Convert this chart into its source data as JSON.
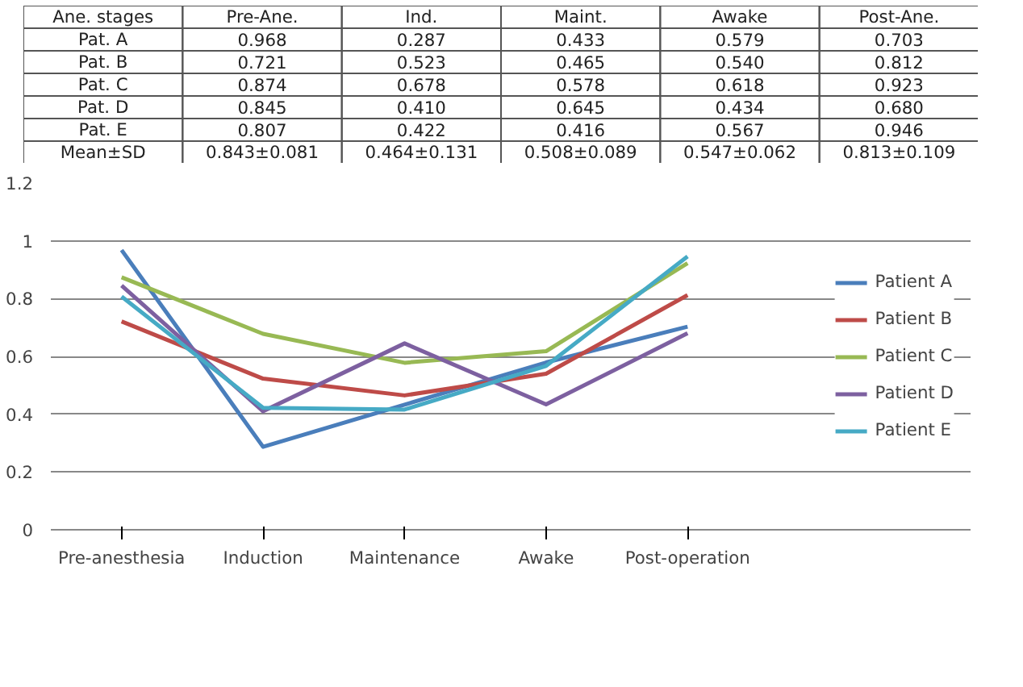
{
  "chart_data": {
    "type": "line",
    "categories": [
      "Pre-anesthesia",
      "Induction",
      "Maintenance",
      "Awake",
      "Post-operation"
    ],
    "series": [
      {
        "name": "Patient A",
        "color": "#4a7ebb",
        "values": [
          0.968,
          0.287,
          0.433,
          0.579,
          0.703
        ]
      },
      {
        "name": "Patient B",
        "color": "#be4b48",
        "values": [
          0.721,
          0.523,
          0.465,
          0.54,
          0.812
        ]
      },
      {
        "name": "Patient C",
        "color": "#98b954",
        "values": [
          0.874,
          0.678,
          0.578,
          0.618,
          0.923
        ]
      },
      {
        "name": "Patient D",
        "color": "#7d60a0",
        "values": [
          0.845,
          0.41,
          0.645,
          0.434,
          0.68
        ]
      },
      {
        "name": "Patient E",
        "color": "#46aac5",
        "values": [
          0.807,
          0.422,
          0.416,
          0.567,
          0.946
        ]
      }
    ],
    "annotations": [
      "Ane. stages",
      "Pre-Ane.",
      "Ind.",
      "Maint.",
      "Awake",
      "Post-Ane.",
      "Pat. A",
      "0.968",
      "0.287",
      "0.433",
      "0.579",
      "0.703",
      "Pat. B",
      "0.721",
      "0.523",
      "0.465",
      "0.540",
      "0.812",
      "Pat. C",
      "0.874",
      "0.678",
      "0.578",
      "0.618",
      "0.923",
      "Pat. D",
      "0.845",
      "0.410",
      "0.645",
      "0.434",
      "0.680",
      "Pat. E",
      "0.807",
      "0.422",
      "0.416",
      "0.567",
      "0.946",
      "Mean±SD",
      "0.843±0.081",
      "0.464±0.131",
      "0.508±0.089",
      "0.547±0.062",
      "0.813±0.109"
    ],
    "ylim": [
      0,
      1.2
    ],
    "yticks": [
      0,
      0.2,
      0.4,
      0.6,
      0.8,
      1,
      1.2
    ],
    "grid": "y",
    "legend": "right",
    "marker": "none",
    "line_style": "solid"
  }
}
